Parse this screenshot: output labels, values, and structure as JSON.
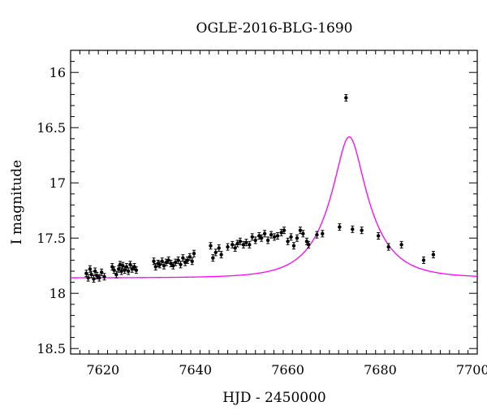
{
  "chart_data": {
    "type": "scatter",
    "title": "OGLE-2016-BLG-1690",
    "xlabel": "HJD - 2450000",
    "ylabel": "I magnitude",
    "xlim": [
      7613,
      7701
    ],
    "ylim": [
      18.55,
      15.8
    ],
    "y_inverted": true,
    "xticks": [
      7620,
      7640,
      7660,
      7680,
      7700
    ],
    "yticks": [
      16,
      16.5,
      17,
      17.5,
      18,
      18.5
    ],
    "ytick_labels": [
      "16",
      "16.5",
      "17",
      "17.5",
      "18",
      "18.5"
    ],
    "grid": false,
    "legend": "none",
    "colors": {
      "points": "#000000",
      "model": "#ff00ff",
      "axes": "#000000"
    },
    "series": [
      {
        "kind": "points",
        "values": [
          [
            7616.4,
            17.82
          ],
          [
            7616.8,
            17.86
          ],
          [
            7617.2,
            17.78
          ],
          [
            7617.5,
            17.83
          ],
          [
            7618.0,
            17.87
          ],
          [
            7618.3,
            17.8
          ],
          [
            7618.7,
            17.84
          ],
          [
            7619.2,
            17.86
          ],
          [
            7619.7,
            17.81
          ],
          [
            7620.3,
            17.85
          ],
          [
            7622.0,
            17.76
          ],
          [
            7622.4,
            17.79
          ],
          [
            7622.9,
            17.83
          ],
          [
            7623.4,
            17.78
          ],
          [
            7623.7,
            17.74
          ],
          [
            7624.0,
            17.8
          ],
          [
            7624.3,
            17.75
          ],
          [
            7624.7,
            17.79
          ],
          [
            7625.1,
            17.76
          ],
          [
            7625.5,
            17.8
          ],
          [
            7625.9,
            17.74
          ],
          [
            7626.3,
            17.78
          ],
          [
            7626.8,
            17.76
          ],
          [
            7627.2,
            17.79
          ],
          [
            7631.0,
            17.71
          ],
          [
            7631.4,
            17.76
          ],
          [
            7631.9,
            17.73
          ],
          [
            7632.3,
            17.74
          ],
          [
            7632.8,
            17.71
          ],
          [
            7633.2,
            17.75
          ],
          [
            7633.7,
            17.72
          ],
          [
            7634.2,
            17.7
          ],
          [
            7634.7,
            17.73
          ],
          [
            7635.2,
            17.75
          ],
          [
            7635.7,
            17.72
          ],
          [
            7636.3,
            17.7
          ],
          [
            7636.8,
            17.74
          ],
          [
            7637.3,
            17.68
          ],
          [
            7637.8,
            17.72
          ],
          [
            7638.3,
            17.7
          ],
          [
            7638.8,
            17.67
          ],
          [
            7639.3,
            17.71
          ],
          [
            7639.7,
            17.64
          ],
          [
            7643.3,
            17.57
          ],
          [
            7643.8,
            17.68
          ],
          [
            7644.4,
            17.63
          ],
          [
            7645.1,
            17.59
          ],
          [
            7645.6,
            17.65
          ],
          [
            7647.0,
            17.58
          ],
          [
            7648.0,
            17.56
          ],
          [
            7648.6,
            17.59
          ],
          [
            7649.1,
            17.55
          ],
          [
            7649.7,
            17.53
          ],
          [
            7650.4,
            17.56
          ],
          [
            7651.0,
            17.54
          ],
          [
            7651.7,
            17.56
          ],
          [
            7652.3,
            17.49
          ],
          [
            7653.0,
            17.52
          ],
          [
            7653.8,
            17.48
          ],
          [
            7654.3,
            17.5
          ],
          [
            7655.0,
            17.46
          ],
          [
            7655.7,
            17.52
          ],
          [
            7656.4,
            17.47
          ],
          [
            7657.1,
            17.49
          ],
          [
            7657.8,
            17.48
          ],
          [
            7658.6,
            17.45
          ],
          [
            7659.2,
            17.43
          ],
          [
            7660.0,
            17.53
          ],
          [
            7660.7,
            17.49
          ],
          [
            7661.3,
            17.57
          ],
          [
            7662.0,
            17.5
          ],
          [
            7662.7,
            17.43
          ],
          [
            7663.3,
            17.46
          ],
          [
            7664.1,
            17.53
          ],
          [
            7664.5,
            17.56
          ],
          [
            7666.3,
            17.47
          ],
          [
            7667.5,
            17.46
          ],
          [
            7671.2,
            17.4
          ],
          [
            7672.6,
            16.23
          ],
          [
            7674.0,
            17.42
          ],
          [
            7676.0,
            17.43
          ],
          [
            7679.6,
            17.48
          ],
          [
            7681.8,
            17.58
          ],
          [
            7684.6,
            17.56
          ],
          [
            7689.4,
            17.7
          ],
          [
            7691.5,
            17.65
          ]
        ]
      },
      {
        "kind": "model",
        "peak_x": 7673.3,
        "peak_y": 16.57,
        "baseline_y": 17.86
      }
    ]
  }
}
